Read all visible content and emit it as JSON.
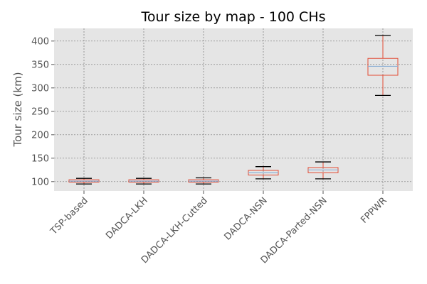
{
  "chart_data": {
    "type": "box",
    "title": "Tour size by map - 100 CHs",
    "ylabel": "Tour size (km)",
    "xlabel": "",
    "ylim": [
      80,
      427
    ],
    "yticks": [
      100,
      150,
      200,
      250,
      300,
      350,
      400
    ],
    "grid": true,
    "categories": [
      "TSP-based",
      "DADCA-LKH",
      "DADCA-LKH-Cutted",
      "DADCA-NSN",
      "DADCA-Parted-NSN",
      "FPPWR"
    ],
    "boxes": [
      {
        "whisker_low": 95,
        "q1": 99,
        "median": 101,
        "q3": 104,
        "whisker_high": 107
      },
      {
        "whisker_low": 95,
        "q1": 99,
        "median": 101,
        "q3": 104,
        "whisker_high": 107
      },
      {
        "whisker_low": 95,
        "q1": 99,
        "median": 101,
        "q3": 104,
        "whisker_high": 108
      },
      {
        "whisker_low": 106,
        "q1": 114,
        "median": 119,
        "q3": 124,
        "whisker_high": 132
      },
      {
        "whisker_low": 106,
        "q1": 119,
        "median": 125,
        "q3": 130,
        "whisker_high": 142
      },
      {
        "whisker_low": 284,
        "q1": 327,
        "median": 346,
        "q3": 363,
        "whisker_high": 412
      }
    ],
    "colors": {
      "background": "#e5e5e5",
      "grid": "#777777",
      "box": "#e24a33",
      "median": "#8eb0d6",
      "whisker_cap": "#000000"
    }
  }
}
